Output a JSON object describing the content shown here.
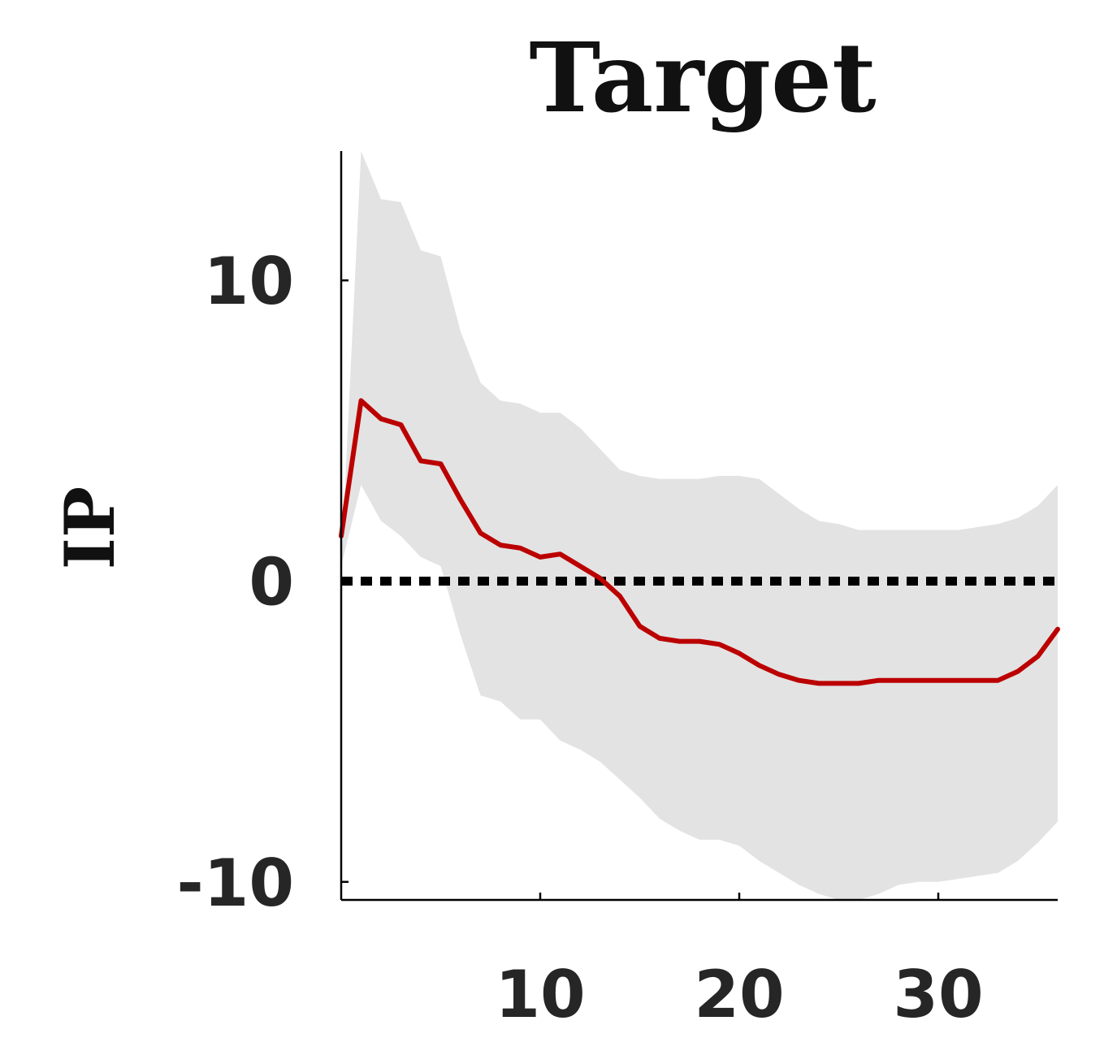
{
  "chart_data": {
    "type": "line",
    "title": "Target",
    "xlabel": "",
    "ylabel": "IP",
    "xlim": [
      0,
      36
    ],
    "ylim": [
      -10.6,
      14.3
    ],
    "x_ticks": [
      10,
      20,
      30
    ],
    "y_ticks": [
      -10,
      0,
      10
    ],
    "x_tick_labels": [
      "10",
      "20",
      "30"
    ],
    "y_tick_labels": [
      "-10",
      "0",
      "10"
    ],
    "zero_line": true,
    "grid": false,
    "colors": {
      "line": "#bb0000",
      "band": "#e3e3e3",
      "zero_line": "#000000",
      "axis": "#000000"
    },
    "series": [
      {
        "kind": "line",
        "x": [
          0,
          1,
          2,
          3,
          4,
          5,
          6,
          7,
          8,
          9,
          10,
          11,
          12,
          13,
          14,
          15,
          16,
          17,
          18,
          19,
          20,
          21,
          22,
          23,
          24,
          25,
          26,
          27,
          28,
          29,
          30,
          31,
          32,
          33,
          34,
          35,
          36
        ],
        "values": [
          1.5,
          6.0,
          5.4,
          5.2,
          4.0,
          3.9,
          2.7,
          1.6,
          1.2,
          1.1,
          0.8,
          0.9,
          0.5,
          0.1,
          -0.5,
          -1.5,
          -1.9,
          -2.0,
          -2.0,
          -2.1,
          -2.4,
          -2.8,
          -3.1,
          -3.3,
          -3.4,
          -3.4,
          -3.4,
          -3.3,
          -3.3,
          -3.3,
          -3.3,
          -3.3,
          -3.3,
          -3.3,
          -3.0,
          -2.5,
          -1.6
        ]
      },
      {
        "kind": "band",
        "x": [
          0,
          1,
          2,
          3,
          4,
          5,
          6,
          7,
          8,
          9,
          10,
          11,
          12,
          13,
          14,
          15,
          16,
          17,
          18,
          19,
          20,
          21,
          22,
          23,
          24,
          25,
          26,
          27,
          28,
          29,
          30,
          31,
          32,
          33,
          34,
          35,
          36
        ],
        "upper": [
          0.5,
          14.3,
          12.7,
          12.6,
          11.0,
          10.8,
          8.3,
          6.6,
          6.0,
          5.9,
          5.6,
          5.6,
          5.1,
          4.4,
          3.7,
          3.5,
          3.4,
          3.4,
          3.4,
          3.5,
          3.5,
          3.4,
          2.9,
          2.4,
          2.0,
          1.9,
          1.7,
          1.7,
          1.7,
          1.7,
          1.7,
          1.7,
          1.8,
          1.9,
          2.1,
          2.5,
          3.2
        ],
        "lower": [
          0.5,
          3.2,
          2.0,
          1.5,
          0.8,
          0.5,
          -1.8,
          -3.8,
          -4.0,
          -4.6,
          -4.6,
          -5.3,
          -5.6,
          -6.0,
          -6.6,
          -7.2,
          -7.9,
          -8.3,
          -8.6,
          -8.6,
          -8.8,
          -9.3,
          -9.7,
          -10.1,
          -10.4,
          -10.6,
          -10.6,
          -10.4,
          -10.1,
          -10.0,
          -10.0,
          -9.9,
          -9.8,
          -9.7,
          -9.3,
          -8.7,
          -8.0
        ]
      }
    ]
  }
}
